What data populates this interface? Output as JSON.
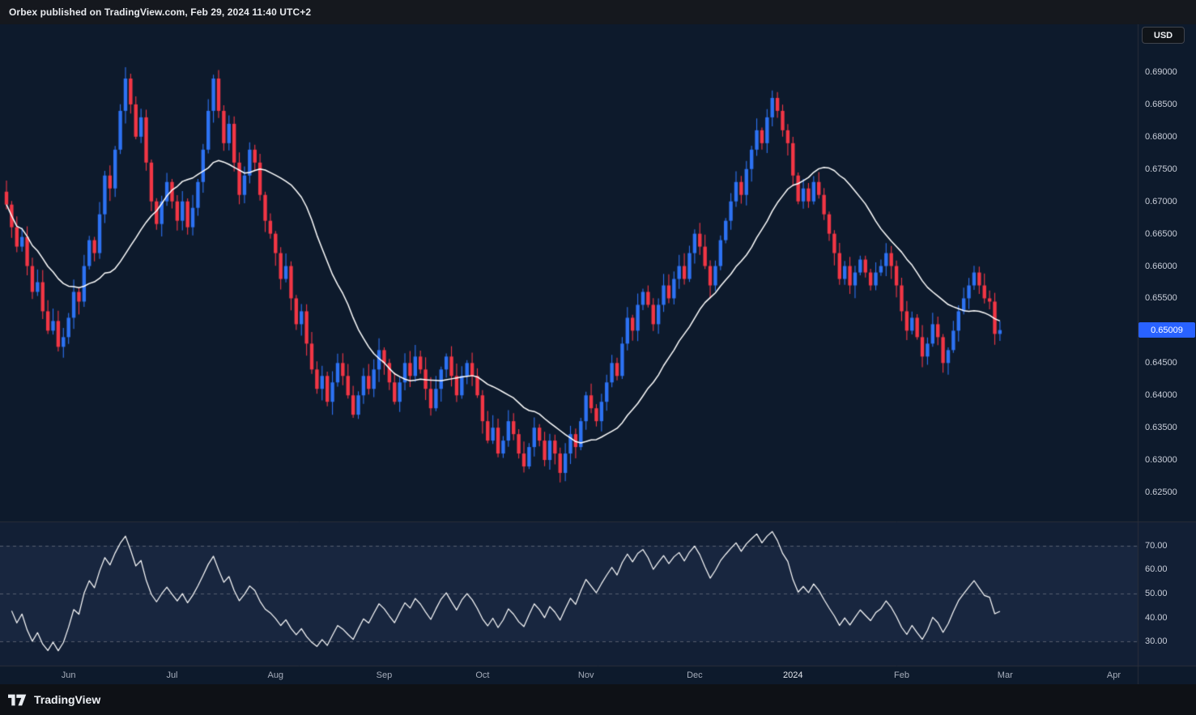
{
  "header": {
    "title": "Orbex published on TradingView.com, Feb 29, 2024 11:40 UTC+2"
  },
  "price_axis": {
    "currency": "USD",
    "last_price": "0.65009",
    "ticks": [
      "0.69000",
      "0.68500",
      "0.68000",
      "0.67500",
      "0.67000",
      "0.66500",
      "0.66000",
      "0.65500",
      "0.64500",
      "0.64000",
      "0.63500",
      "0.63000",
      "0.62500"
    ]
  },
  "indicator_axis": {
    "labels": [
      "70.00",
      "60.00",
      "50.00",
      "40.00",
      "30.00"
    ],
    "values": [
      70,
      60,
      50,
      40,
      30
    ]
  },
  "time_axis": {
    "labels": [
      {
        "label": "Jun",
        "idx": 12
      },
      {
        "label": "Jul",
        "idx": 32
      },
      {
        "label": "Aug",
        "idx": 52
      },
      {
        "label": "Sep",
        "idx": 73
      },
      {
        "label": "Oct",
        "idx": 92
      },
      {
        "label": "Nov",
        "idx": 112
      },
      {
        "label": "Dec",
        "idx": 133
      },
      {
        "label": "2024",
        "idx": 152,
        "year": true
      },
      {
        "label": "Feb",
        "idx": 173
      },
      {
        "label": "Mar",
        "idx": 193
      },
      {
        "label": "Apr",
        "idx": 214
      }
    ]
  },
  "footer": {
    "brand": "TradingView",
    "logo": "tradingview-logo"
  },
  "colors": {
    "up": "#2d72f3",
    "down": "#f23645",
    "ma_line": "#ffffff",
    "rsi_line": "#ffffff",
    "badge_bg": "#2962ff",
    "chart_bg": "#0d1a2c",
    "indicator_bg": "#121f35",
    "band_fill": "rgba(140,170,255,0.05)",
    "panel_bg": "#15181e",
    "footer_bg": "#0e1116",
    "border": "#2a2e39",
    "guide": "#8a8e98",
    "tick_text": "#c9ced9",
    "month_text": "#a6adbb",
    "year_text": "#e4e7ed"
  },
  "chart_data": {
    "type": "candlestick",
    "description": "Daily candlestick chart (USD quote) with 20-period moving average overlay and RSI(14) lower pane, May 2023 - Feb 29 2024",
    "price_pane": {
      "ylim": [
        0.6205,
        0.6975
      ],
      "tick_values": [
        0.69,
        0.685,
        0.68,
        0.675,
        0.67,
        0.665,
        0.66,
        0.655,
        0.645,
        0.64,
        0.635,
        0.63,
        0.625
      ],
      "first_open": 0.6715,
      "closes": [
        0.6695,
        0.666,
        0.663,
        0.6645,
        0.66,
        0.656,
        0.6575,
        0.653,
        0.65,
        0.6515,
        0.6475,
        0.649,
        0.652,
        0.656,
        0.6545,
        0.66,
        0.664,
        0.662,
        0.668,
        0.674,
        0.672,
        0.678,
        0.684,
        0.689,
        0.685,
        0.68,
        0.683,
        0.676,
        0.67,
        0.6665,
        0.67,
        0.673,
        0.67,
        0.667,
        0.67,
        0.666,
        0.669,
        0.673,
        0.678,
        0.684,
        0.689,
        0.684,
        0.679,
        0.682,
        0.676,
        0.671,
        0.674,
        0.678,
        0.676,
        0.671,
        0.667,
        0.665,
        0.662,
        0.658,
        0.66,
        0.655,
        0.651,
        0.653,
        0.648,
        0.644,
        0.641,
        0.643,
        0.639,
        0.642,
        0.645,
        0.643,
        0.64,
        0.637,
        0.64,
        0.643,
        0.641,
        0.644,
        0.647,
        0.645,
        0.642,
        0.639,
        0.642,
        0.645,
        0.643,
        0.646,
        0.644,
        0.641,
        0.638,
        0.641,
        0.644,
        0.646,
        0.643,
        0.64,
        0.643,
        0.645,
        0.643,
        0.64,
        0.636,
        0.633,
        0.635,
        0.631,
        0.633,
        0.636,
        0.634,
        0.631,
        0.629,
        0.632,
        0.635,
        0.633,
        0.63,
        0.633,
        0.631,
        0.628,
        0.631,
        0.634,
        0.632,
        0.636,
        0.64,
        0.638,
        0.636,
        0.639,
        0.642,
        0.645,
        0.643,
        0.648,
        0.652,
        0.65,
        0.654,
        0.656,
        0.654,
        0.651,
        0.654,
        0.657,
        0.655,
        0.658,
        0.66,
        0.658,
        0.662,
        0.665,
        0.663,
        0.66,
        0.657,
        0.66,
        0.664,
        0.667,
        0.67,
        0.673,
        0.671,
        0.675,
        0.678,
        0.681,
        0.679,
        0.683,
        0.686,
        0.684,
        0.681,
        0.679,
        0.674,
        0.67,
        0.672,
        0.67,
        0.673,
        0.671,
        0.668,
        0.665,
        0.662,
        0.658,
        0.66,
        0.657,
        0.659,
        0.661,
        0.659,
        0.657,
        0.659,
        0.66,
        0.662,
        0.66,
        0.657,
        0.653,
        0.65,
        0.652,
        0.649,
        0.646,
        0.648,
        0.651,
        0.649,
        0.645,
        0.647,
        0.65,
        0.653,
        0.655,
        0.657,
        0.659,
        0.657,
        0.655,
        0.6545,
        0.6495,
        0.65009
      ],
      "overlay_ma": {
        "type": "sma",
        "period": 20
      }
    },
    "indicator_pane": {
      "type": "rsi",
      "period": 14,
      "range": [
        20,
        80
      ],
      "guides": [
        70,
        50,
        30
      ],
      "guide_labels": [
        "70.00",
        "60.00",
        "50.00",
        "40.00",
        "30.00"
      ]
    },
    "last_price": 0.65009
  }
}
